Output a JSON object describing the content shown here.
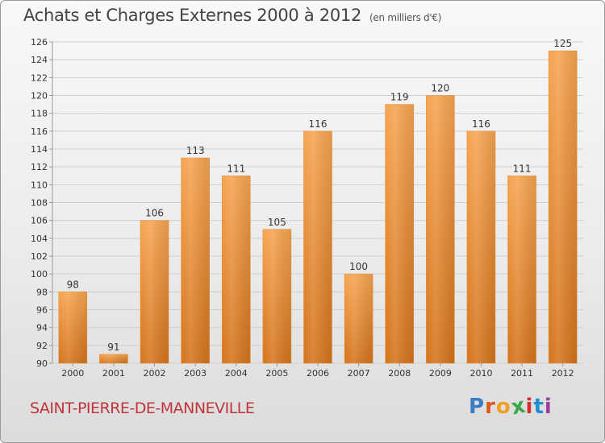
{
  "header": {
    "title": "Achats et Charges Externes 2000 à 2012",
    "subtitle": "(en milliers d'€)"
  },
  "footer": {
    "city": "SAINT-PIERRE-DE-MANNEVILLE",
    "brand_letters": [
      "P",
      "r",
      "o",
      "x",
      "i",
      "t",
      "i"
    ],
    "brand_colors": [
      "#3b7dc4",
      "#e0561f",
      "#f0a020",
      "#3aa64a",
      "#d0312d",
      "#1d8fd0",
      "#9c3fa0"
    ]
  },
  "colors": {
    "bar_light": "#f6a552",
    "bar_dark": "#d4741c",
    "bar_edge": "#e8913a",
    "grid": "#cfcfcf",
    "axis_text": "#333333"
  },
  "chart_data": {
    "type": "bar",
    "categories": [
      "2000",
      "2001",
      "2002",
      "2003",
      "2004",
      "2005",
      "2006",
      "2007",
      "2008",
      "2009",
      "2010",
      "2011",
      "2012"
    ],
    "values": [
      98,
      91,
      106,
      113,
      111,
      105,
      116,
      100,
      119,
      120,
      116,
      111,
      125
    ],
    "ylim": [
      90,
      126
    ],
    "yticks": [
      90,
      92,
      94,
      96,
      98,
      100,
      102,
      104,
      106,
      108,
      110,
      112,
      114,
      116,
      118,
      120,
      122,
      124,
      126
    ],
    "grid": true,
    "data_labels": true
  }
}
